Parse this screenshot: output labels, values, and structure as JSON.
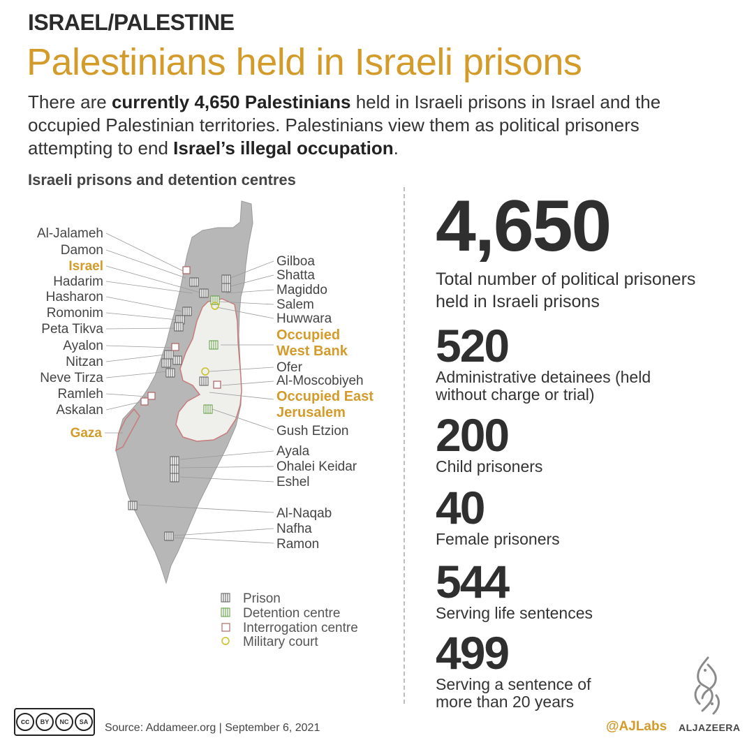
{
  "header": {
    "kicker": "ISRAEL/PALESTINE",
    "headline": "Palestinians held in Israeli prisons",
    "intro_parts": [
      "There are ",
      "currently 4,650 Palestinians",
      " held in Israeli prisons in Israel and the occupied Palestinian territories. Palestinians view them as political prisoners attempting to end ",
      "Israel’s illegal occupation",
      "."
    ]
  },
  "map": {
    "title": "Israeli prisons and detention centres",
    "left_labels": [
      "Al-Jalameh",
      "Damon",
      "Israel",
      "Hadarim",
      "Hasharon",
      "Romonim",
      "Peta Tikva",
      "Ayalon",
      "Nitzan",
      "Neve Tirza",
      "Ramleh",
      "Askalan",
      "Gaza"
    ],
    "right_labels": [
      "Gilboa",
      "Shatta",
      "Magiddo",
      "Salem",
      "Huwwara",
      "Occupied",
      "West Bank",
      "Ofer",
      "Al-Moscobiyeh",
      "Occupied East",
      "Jerusalem",
      "Gush Etzion",
      "Ayala",
      "Ohalei Keidar",
      "Eshel",
      "Al-Naqab",
      "Nafha",
      "Ramon"
    ],
    "legend": [
      "Prison",
      "Detention centre",
      "Interrogation centre",
      "Military court"
    ],
    "colors": {
      "land": "#b7b7b7",
      "west_bank": "#efefec",
      "border": "#c77b7b",
      "accent": "#d39b2a",
      "prison": "#555555",
      "detention": "#5a9a3a",
      "interrogation": "#b06a6a",
      "court": "#c8c024"
    }
  },
  "stats": [
    {
      "value": "4,650",
      "description": "Total number of political prisoners held in Israeli prisons"
    },
    {
      "value": "520",
      "description": "Administrative detainees (held without charge or trial)"
    },
    {
      "value": "200",
      "description": "Child prisoners"
    },
    {
      "value": "40",
      "description": "Female prisoners"
    },
    {
      "value": "544",
      "description": "Serving life sentences"
    },
    {
      "value": "499",
      "description": "Serving a sentence of more than 20 years"
    }
  ],
  "footer": {
    "license_labels": [
      "BY",
      "NC",
      "SA"
    ],
    "source": "Source: Addameer.org | September 6, 2021",
    "handle": "@AJLabs",
    "brand": "ALJAZEERA"
  }
}
